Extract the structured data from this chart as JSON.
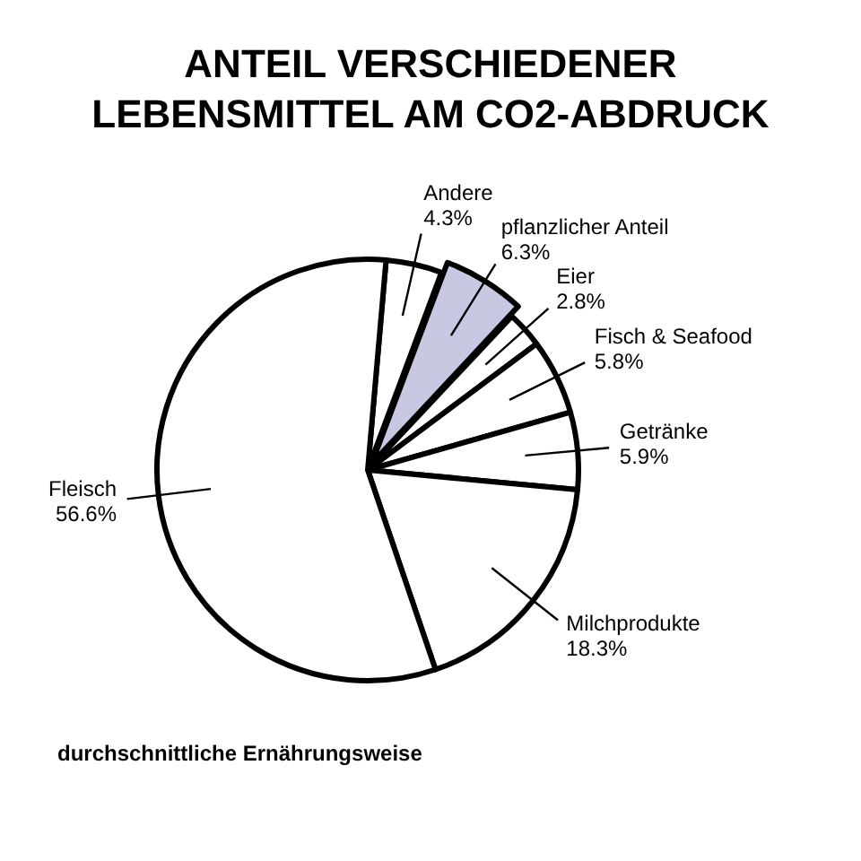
{
  "chart_data": {
    "type": "pie",
    "title": "ANTEIL VERSCHIEDENER LEBENSMITTEL AM CO2-ABDRUCK",
    "categories": [
      "Andere",
      "pflanzlicher Anteil",
      "Eier",
      "Fisch & Seafood",
      "Getränke",
      "Milchprodukte",
      "Fleisch"
    ],
    "values": [
      4.3,
      6.3,
      2.8,
      5.8,
      5.9,
      18.3,
      56.6
    ],
    "value_labels": [
      "4.3%",
      "6.3%",
      "2.8%",
      "5.8%",
      "5.9%",
      "18.3%",
      "56.6%"
    ],
    "colors": [
      "#ffffff",
      "#c7c9e3",
      "#ffffff",
      "#ffffff",
      "#ffffff",
      "#ffffff",
      "#ffffff"
    ],
    "legend": false,
    "annotations": [
      "durchschnittliche Ernährungsweise"
    ]
  }
}
